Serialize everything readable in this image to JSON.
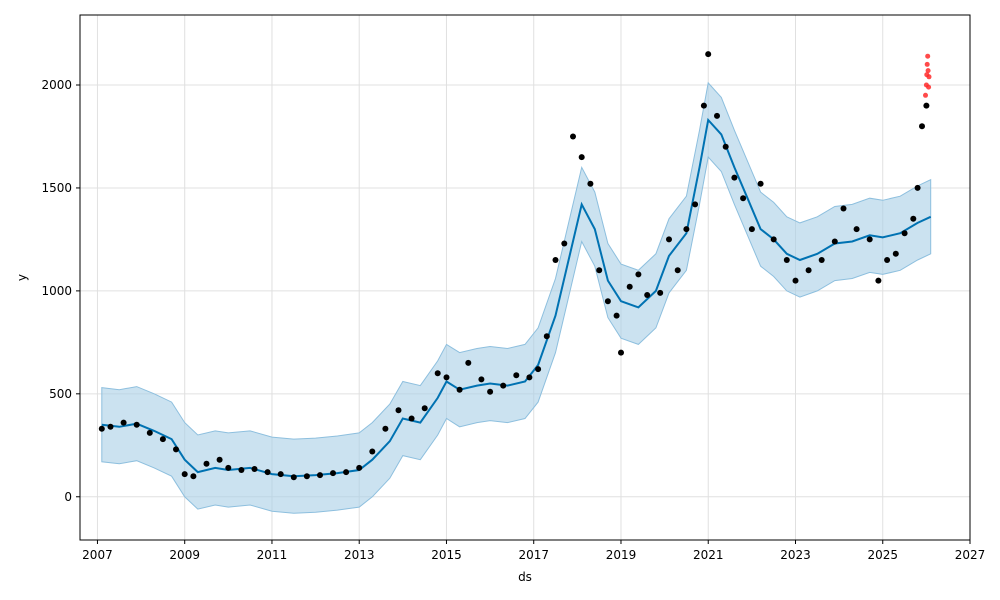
{
  "chart_data": {
    "type": "scatter",
    "xlabel": "ds",
    "ylabel": "y",
    "xlim": [
      2006.6,
      2027.0
    ],
    "ylim": [
      -210,
      2340
    ],
    "x_ticks": [
      2007,
      2009,
      2011,
      2013,
      2015,
      2017,
      2019,
      2021,
      2023,
      2025,
      2027
    ],
    "x_tick_labels": [
      "2007",
      "2009",
      "2011",
      "2013",
      "2015",
      "2017",
      "2019",
      "2021",
      "2023",
      "2025",
      "2027"
    ],
    "y_ticks": [
      0,
      500,
      1000,
      1500,
      2000
    ],
    "y_tick_labels": [
      "0",
      "500",
      "1000",
      "1500",
      "2000"
    ],
    "grid": true,
    "colors": {
      "observed": "#000000",
      "recent": "#ff2a2a",
      "forecast": "#0072B2",
      "band": "#a9cfe6",
      "grid": "#e0e0e0"
    },
    "series": [
      {
        "role": "forecast-line",
        "points": [
          [
            2007.1,
            350
          ],
          [
            2007.5,
            340
          ],
          [
            2007.9,
            355
          ],
          [
            2008.3,
            320
          ],
          [
            2008.7,
            280
          ],
          [
            2009.0,
            180
          ],
          [
            2009.3,
            120
          ],
          [
            2009.7,
            140
          ],
          [
            2010.0,
            130
          ],
          [
            2010.5,
            140
          ],
          [
            2011.0,
            110
          ],
          [
            2011.5,
            100
          ],
          [
            2012.0,
            105
          ],
          [
            2012.5,
            115
          ],
          [
            2013.0,
            130
          ],
          [
            2013.3,
            180
          ],
          [
            2013.7,
            270
          ],
          [
            2014.0,
            380
          ],
          [
            2014.4,
            360
          ],
          [
            2014.8,
            480
          ],
          [
            2015.0,
            560
          ],
          [
            2015.3,
            520
          ],
          [
            2015.7,
            540
          ],
          [
            2016.0,
            550
          ],
          [
            2016.4,
            540
          ],
          [
            2016.8,
            560
          ],
          [
            2017.1,
            640
          ],
          [
            2017.5,
            880
          ],
          [
            2017.8,
            1150
          ],
          [
            2018.1,
            1420
          ],
          [
            2018.4,
            1300
          ],
          [
            2018.7,
            1050
          ],
          [
            2019.0,
            950
          ],
          [
            2019.4,
            920
          ],
          [
            2019.8,
            1000
          ],
          [
            2020.1,
            1170
          ],
          [
            2020.5,
            1280
          ],
          [
            2020.8,
            1600
          ],
          [
            2021.0,
            1830
          ],
          [
            2021.3,
            1760
          ],
          [
            2021.6,
            1600
          ],
          [
            2021.9,
            1450
          ],
          [
            2022.2,
            1300
          ],
          [
            2022.5,
            1250
          ],
          [
            2022.8,
            1180
          ],
          [
            2023.1,
            1150
          ],
          [
            2023.5,
            1180
          ],
          [
            2023.9,
            1230
          ],
          [
            2024.3,
            1240
          ],
          [
            2024.7,
            1270
          ],
          [
            2025.0,
            1260
          ],
          [
            2025.4,
            1280
          ],
          [
            2025.8,
            1330
          ],
          [
            2026.1,
            1360
          ]
        ],
        "band_half_width": 180
      },
      {
        "role": "observed",
        "points": [
          [
            2007.1,
            330
          ],
          [
            2007.3,
            340
          ],
          [
            2007.6,
            360
          ],
          [
            2007.9,
            350
          ],
          [
            2008.2,
            310
          ],
          [
            2008.5,
            280
          ],
          [
            2008.8,
            230
          ],
          [
            2009.0,
            110
          ],
          [
            2009.2,
            100
          ],
          [
            2009.5,
            160
          ],
          [
            2009.8,
            180
          ],
          [
            2010.0,
            140
          ],
          [
            2010.3,
            130
          ],
          [
            2010.6,
            135
          ],
          [
            2010.9,
            120
          ],
          [
            2011.2,
            110
          ],
          [
            2011.5,
            95
          ],
          [
            2011.8,
            100
          ],
          [
            2012.1,
            105
          ],
          [
            2012.4,
            115
          ],
          [
            2012.7,
            120
          ],
          [
            2013.0,
            140
          ],
          [
            2013.3,
            220
          ],
          [
            2013.6,
            330
          ],
          [
            2013.9,
            420
          ],
          [
            2014.2,
            380
          ],
          [
            2014.5,
            430
          ],
          [
            2014.8,
            600
          ],
          [
            2015.0,
            580
          ],
          [
            2015.3,
            520
          ],
          [
            2015.5,
            650
          ],
          [
            2015.8,
            570
          ],
          [
            2016.0,
            510
          ],
          [
            2016.3,
            540
          ],
          [
            2016.6,
            590
          ],
          [
            2016.9,
            580
          ],
          [
            2017.1,
            620
          ],
          [
            2017.3,
            780
          ],
          [
            2017.5,
            1150
          ],
          [
            2017.7,
            1230
          ],
          [
            2017.9,
            1750
          ],
          [
            2018.1,
            1650
          ],
          [
            2018.3,
            1520
          ],
          [
            2018.5,
            1100
          ],
          [
            2018.7,
            950
          ],
          [
            2018.9,
            880
          ],
          [
            2019.0,
            700
          ],
          [
            2019.2,
            1020
          ],
          [
            2019.4,
            1080
          ],
          [
            2019.6,
            980
          ],
          [
            2019.9,
            990
          ],
          [
            2020.1,
            1250
          ],
          [
            2020.3,
            1100
          ],
          [
            2020.5,
            1300
          ],
          [
            2020.7,
            1420
          ],
          [
            2020.9,
            1900
          ],
          [
            2021.0,
            2150
          ],
          [
            2021.2,
            1850
          ],
          [
            2021.4,
            1700
          ],
          [
            2021.6,
            1550
          ],
          [
            2021.8,
            1450
          ],
          [
            2022.0,
            1300
          ],
          [
            2022.2,
            1520
          ],
          [
            2022.5,
            1250
          ],
          [
            2022.8,
            1150
          ],
          [
            2023.0,
            1050
          ],
          [
            2023.3,
            1100
          ],
          [
            2023.6,
            1150
          ],
          [
            2023.9,
            1240
          ],
          [
            2024.1,
            1400
          ],
          [
            2024.4,
            1300
          ],
          [
            2024.7,
            1250
          ],
          [
            2024.9,
            1050
          ],
          [
            2025.1,
            1150
          ],
          [
            2025.3,
            1180
          ],
          [
            2025.5,
            1280
          ],
          [
            2025.7,
            1350
          ],
          [
            2025.8,
            1500
          ],
          [
            2025.9,
            1800
          ],
          [
            2026.0,
            1900
          ]
        ]
      },
      {
        "role": "recent",
        "points": [
          [
            2025.98,
            1950
          ],
          [
            2026.0,
            2000
          ],
          [
            2026.01,
            2050
          ],
          [
            2026.02,
            2100
          ],
          [
            2026.03,
            2140
          ],
          [
            2026.04,
            2070
          ],
          [
            2026.05,
            1990
          ],
          [
            2026.06,
            2040
          ]
        ]
      }
    ]
  }
}
